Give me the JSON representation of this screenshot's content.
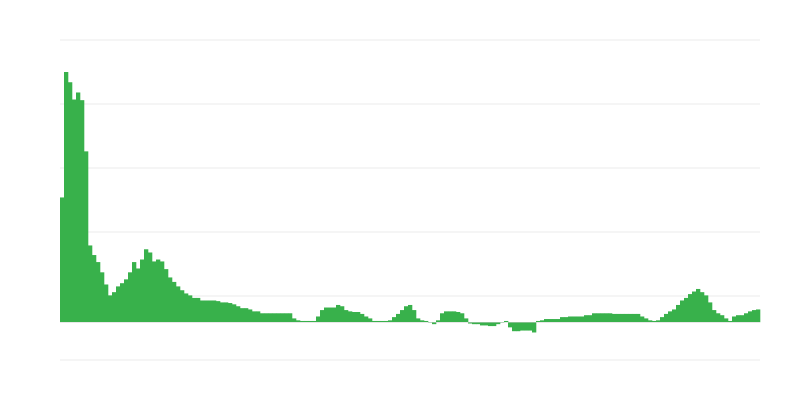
{
  "chart_data": {
    "type": "bar",
    "title": "",
    "xlabel": "",
    "ylabel": "",
    "ylim": [
      -0.59,
      4.41
    ],
    "gridlines": [
      4.41,
      3.41,
      2.41,
      1.41,
      0.41,
      -0.59
    ],
    "grid": true,
    "legend": "none",
    "bar_color": "#38b14b",
    "grid_color": "#ebebeb",
    "values": [
      1.95,
      3.91,
      3.75,
      3.48,
      3.59,
      3.47,
      2.67,
      1.2,
      1.05,
      0.94,
      0.78,
      0.59,
      0.42,
      0.47,
      0.56,
      0.61,
      0.67,
      0.78,
      0.94,
      0.84,
      0.98,
      1.14,
      1.09,
      0.95,
      0.98,
      0.95,
      0.83,
      0.7,
      0.63,
      0.56,
      0.5,
      0.45,
      0.42,
      0.38,
      0.38,
      0.34,
      0.34,
      0.34,
      0.34,
      0.33,
      0.31,
      0.31,
      0.3,
      0.28,
      0.25,
      0.22,
      0.22,
      0.2,
      0.17,
      0.17,
      0.14,
      0.14,
      0.14,
      0.14,
      0.14,
      0.14,
      0.14,
      0.14,
      0.06,
      0.03,
      0.02,
      0.02,
      0.02,
      0.02,
      0.09,
      0.19,
      0.23,
      0.23,
      0.23,
      0.27,
      0.25,
      0.19,
      0.17,
      0.16,
      0.16,
      0.13,
      0.09,
      0.06,
      0.02,
      0.02,
      0.02,
      0.02,
      0.03,
      0.08,
      0.13,
      0.19,
      0.25,
      0.27,
      0.19,
      0.06,
      0.03,
      0.02,
      0.0,
      -0.03,
      0.03,
      0.14,
      0.17,
      0.17,
      0.17,
      0.16,
      0.14,
      0.06,
      -0.02,
      -0.03,
      -0.03,
      -0.05,
      -0.05,
      -0.06,
      -0.06,
      -0.03,
      0.0,
      0.02,
      -0.08,
      -0.14,
      -0.14,
      -0.13,
      -0.13,
      -0.13,
      -0.16,
      0.02,
      0.03,
      0.05,
      0.05,
      0.05,
      0.05,
      0.08,
      0.08,
      0.09,
      0.09,
      0.09,
      0.09,
      0.11,
      0.11,
      0.14,
      0.14,
      0.14,
      0.14,
      0.14,
      0.13,
      0.13,
      0.13,
      0.13,
      0.13,
      0.13,
      0.13,
      0.09,
      0.06,
      0.03,
      0.02,
      0.03,
      0.08,
      0.13,
      0.17,
      0.2,
      0.27,
      0.34,
      0.38,
      0.44,
      0.48,
      0.52,
      0.47,
      0.42,
      0.31,
      0.19,
      0.14,
      0.11,
      0.06,
      0.02,
      0.09,
      0.11,
      0.11,
      0.14,
      0.17,
      0.19,
      0.2
    ]
  }
}
